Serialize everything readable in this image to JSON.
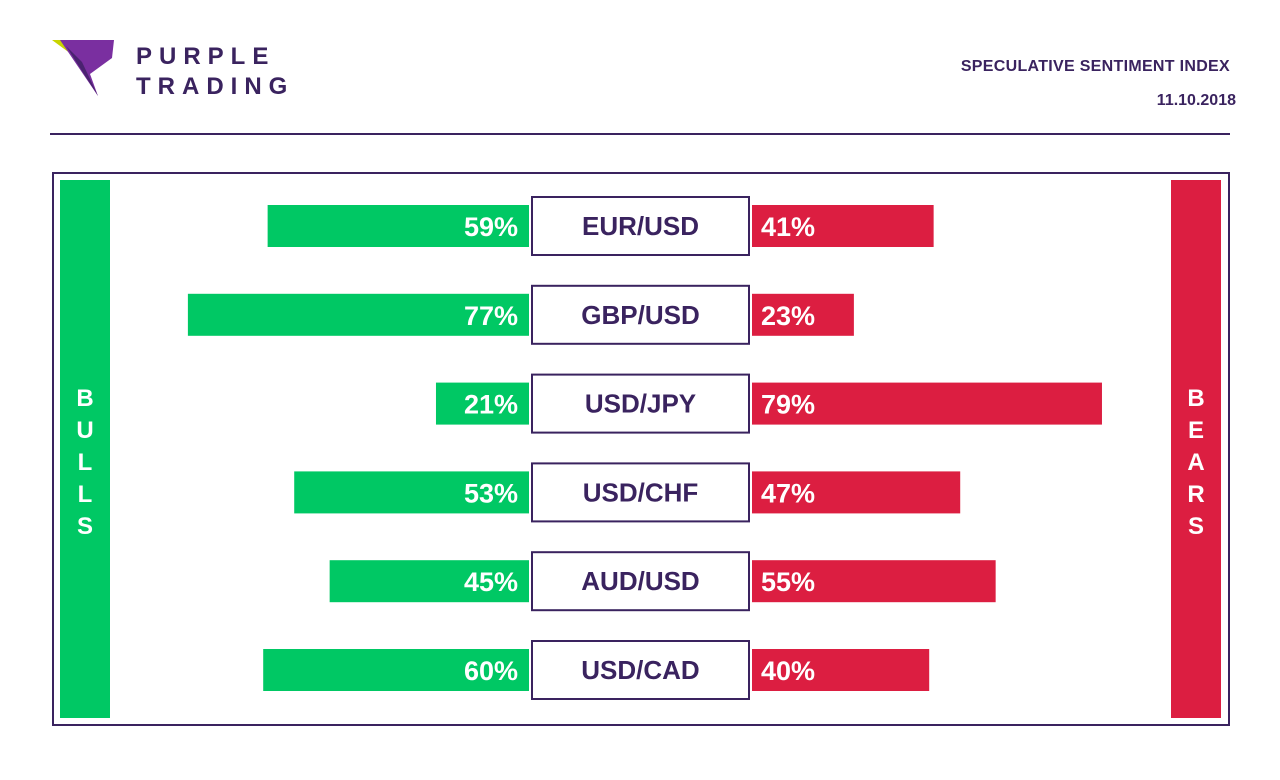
{
  "brand": {
    "line1": "PURPLE",
    "line2": "TRADING"
  },
  "header": {
    "title": "SPECULATIVE SENTIMENT INDEX",
    "date": "11.10.2018"
  },
  "colors": {
    "bulls": "#00c864",
    "bears": "#dc1e41",
    "brand": "#3a235f"
  },
  "chart_data": {
    "type": "bar",
    "title": "SPECULATIVE SENTIMENT INDEX",
    "side_labels": {
      "left": "BULLS",
      "right": "BEARS"
    },
    "categories": [
      "EUR/USD",
      "GBP/USD",
      "USD/JPY",
      "USD/CHF",
      "AUD/USD",
      "USD/CAD"
    ],
    "series": [
      {
        "name": "BULLS",
        "values": [
          59,
          77,
          21,
          53,
          45,
          60
        ],
        "value_labels": [
          "59%",
          "77%",
          "21%",
          "53%",
          "45%",
          "60%"
        ]
      },
      {
        "name": "BEARS",
        "values": [
          41,
          23,
          79,
          47,
          55,
          40
        ],
        "value_labels": [
          "41%",
          "23%",
          "79%",
          "47%",
          "55%",
          "40%"
        ]
      }
    ],
    "ylim": [
      0,
      100
    ]
  }
}
